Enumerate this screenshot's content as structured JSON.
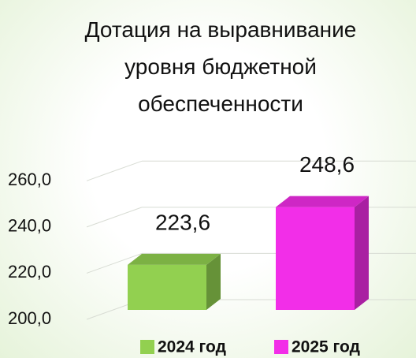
{
  "chart_data": {
    "type": "bar",
    "title": "Дотация на выравнивание уровня бюджетной обеспеченности",
    "series": [
      {
        "name": "2024 год",
        "color": "#92d050",
        "values": [
          223.6
        ],
        "value_labels": [
          "223,6"
        ]
      },
      {
        "name": "2025 год",
        "color": "#f22ee8",
        "values": [
          248.6
        ],
        "value_labels": [
          "248,6"
        ]
      }
    ],
    "ylim": [
      200,
      270
    ],
    "yticks": [
      {
        "value": 200,
        "label": "200,0"
      },
      {
        "value": 220,
        "label": "220,0"
      },
      {
        "value": 240,
        "label": "240,0"
      },
      {
        "value": 260,
        "label": "260,0"
      }
    ],
    "grid": true,
    "legend": "bottom"
  }
}
